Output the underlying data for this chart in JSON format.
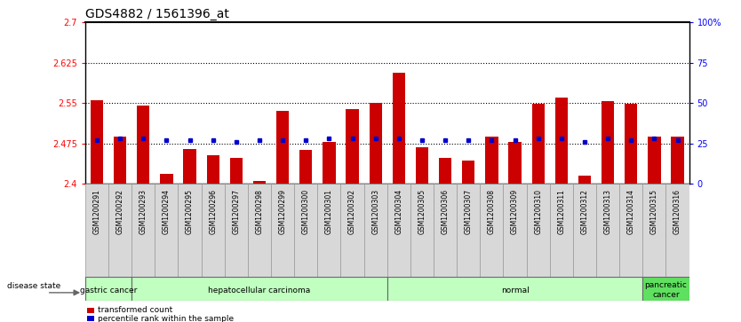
{
  "title": "GDS4882 / 1561396_at",
  "samples": [
    "GSM1200291",
    "GSM1200292",
    "GSM1200293",
    "GSM1200294",
    "GSM1200295",
    "GSM1200296",
    "GSM1200297",
    "GSM1200298",
    "GSM1200299",
    "GSM1200300",
    "GSM1200301",
    "GSM1200302",
    "GSM1200303",
    "GSM1200304",
    "GSM1200305",
    "GSM1200306",
    "GSM1200307",
    "GSM1200308",
    "GSM1200309",
    "GSM1200310",
    "GSM1200311",
    "GSM1200312",
    "GSM1200313",
    "GSM1200314",
    "GSM1200315",
    "GSM1200316"
  ],
  "bar_values": [
    2.555,
    2.488,
    2.545,
    2.418,
    2.465,
    2.452,
    2.448,
    2.405,
    2.535,
    2.463,
    2.478,
    2.538,
    2.551,
    2.607,
    2.468,
    2.447,
    2.443,
    2.487,
    2.478,
    2.548,
    2.56,
    2.415,
    2.553,
    2.549,
    2.488,
    2.487
  ],
  "percentile_values": [
    27,
    28,
    28,
    27,
    27,
    27,
    26,
    27,
    27,
    27,
    28,
    28,
    28,
    28,
    27,
    27,
    27,
    27,
    27,
    28,
    28,
    26,
    28,
    27,
    28,
    27
  ],
  "ymin": 2.4,
  "ymax": 2.7,
  "yticks": [
    2.4,
    2.475,
    2.55,
    2.625,
    2.7
  ],
  "ytick_labels": [
    "2.4",
    "2.475",
    "2.55",
    "2.625",
    "2.7"
  ],
  "right_yticks": [
    0,
    25,
    50,
    75,
    100
  ],
  "right_ytick_labels": [
    "0",
    "25",
    "50",
    "75",
    "100%"
  ],
  "dotted_lines": [
    2.475,
    2.55,
    2.625
  ],
  "bar_color": "#cc0000",
  "blue_color": "#0000cc",
  "disease_groups": [
    {
      "label": "gastric cancer",
      "start": 0,
      "end": 2,
      "color": "#c0ffc0"
    },
    {
      "label": "hepatocellular carcinoma",
      "start": 2,
      "end": 13,
      "color": "#c0ffc0"
    },
    {
      "label": "normal",
      "start": 13,
      "end": 24,
      "color": "#c0ffc0"
    },
    {
      "label": "pancreatic\ncancer",
      "start": 24,
      "end": 26,
      "color": "#60e060"
    }
  ],
  "title_fontsize": 10,
  "tick_fontsize": 7,
  "bar_width": 0.55
}
